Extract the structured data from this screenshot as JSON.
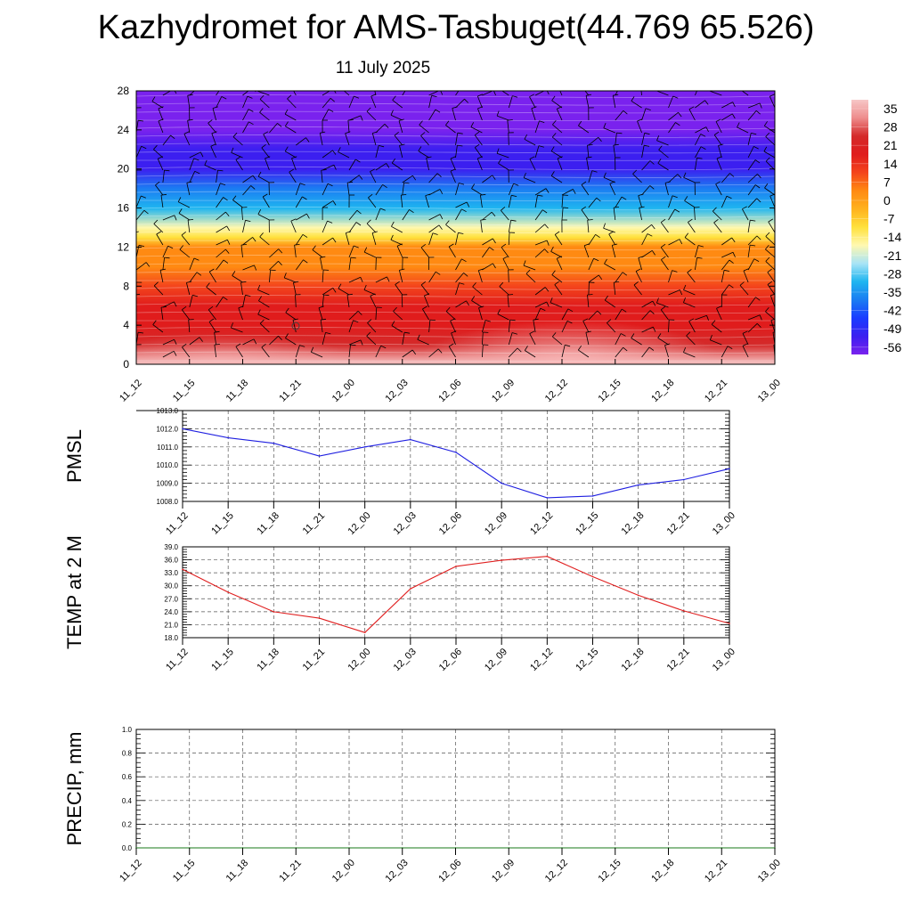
{
  "title": "Kazhydromet for AMS-Tasbuget(44.769 65.526)",
  "subtitle": "11 July 2025",
  "colors": {
    "pmsl_line": "#1f1fe0",
    "temp_line": "#e01f1f",
    "precip_line": "#1a7a1a",
    "grid": "#555555"
  },
  "chart_data": [
    {
      "type": "heatmap",
      "ylim": [
        0,
        28
      ],
      "yticks": [
        "0",
        "4",
        "8",
        "12",
        "16",
        "20",
        "24",
        "28"
      ],
      "x": [
        "11_12",
        "11_15",
        "11_18",
        "11_21",
        "12_00",
        "12_03",
        "12_06",
        "12_09",
        "12_12",
        "12_15",
        "12_18",
        "12_21",
        "13_00"
      ],
      "colorbar": {
        "labels": [
          "35",
          "28",
          "21",
          "14",
          "7",
          "0",
          "-7",
          "-14",
          "-21",
          "-28",
          "-35",
          "-42",
          "-49",
          "-56"
        ],
        "range": [
          -60,
          38
        ]
      },
      "profile_levels": [
        0,
        2,
        4,
        6,
        8,
        10,
        12,
        13,
        14,
        16,
        18,
        20,
        22,
        24,
        26,
        28
      ],
      "profile_values": [
        36,
        30,
        26,
        24,
        18,
        10,
        4,
        -6,
        -14,
        -26,
        -38,
        -50,
        -56,
        -58,
        -59,
        -60
      ],
      "wind_barbs": true
    },
    {
      "type": "line",
      "ylabel": "PMSL",
      "ylim": [
        1008.0,
        1013.0
      ],
      "yticks": [
        "1008.0",
        "1009.0",
        "1010.0",
        "1011.0",
        "1012.0",
        "1013.0"
      ],
      "x": [
        "11_12",
        "11_15",
        "11_18",
        "11_21",
        "12_00",
        "12_03",
        "12_06",
        "12_09",
        "12_12",
        "12_15",
        "12_18",
        "12_21",
        "13_00"
      ],
      "values": [
        1012.0,
        1011.5,
        1011.2,
        1010.5,
        1011.0,
        1011.4,
        1010.7,
        1009.0,
        1008.2,
        1008.3,
        1008.9,
        1009.2,
        1009.8
      ]
    },
    {
      "type": "line",
      "ylabel": "TEMP at 2 M",
      "ylim": [
        18.0,
        39.0
      ],
      "yticks": [
        "18.0",
        "21.0",
        "24.0",
        "27.0",
        "30.0",
        "33.0",
        "36.0",
        "39.0"
      ],
      "x": [
        "11_12",
        "11_15",
        "11_18",
        "11_21",
        "12_00",
        "12_03",
        "12_06",
        "12_09",
        "12_12",
        "12_15",
        "12_18",
        "12_21",
        "13_00"
      ],
      "values": [
        33.8,
        28.5,
        24.0,
        22.5,
        19.2,
        29.3,
        34.5,
        35.9,
        36.8,
        32.1,
        27.8,
        24.2,
        21.3
      ]
    },
    {
      "type": "line",
      "ylabel": "PRECIP, mm",
      "ylim": [
        0.0,
        1.0
      ],
      "yticks": [
        "0.0",
        "0.2",
        "0.4",
        "0.6",
        "0.8",
        "1.0"
      ],
      "x": [
        "11_12",
        "11_15",
        "11_18",
        "11_21",
        "12_00",
        "12_03",
        "12_06",
        "12_09",
        "12_12",
        "12_15",
        "12_18",
        "12_21",
        "13_00"
      ],
      "values": [
        0,
        0,
        0,
        0,
        0,
        0,
        0,
        0,
        0,
        0,
        0,
        0,
        0
      ]
    }
  ]
}
